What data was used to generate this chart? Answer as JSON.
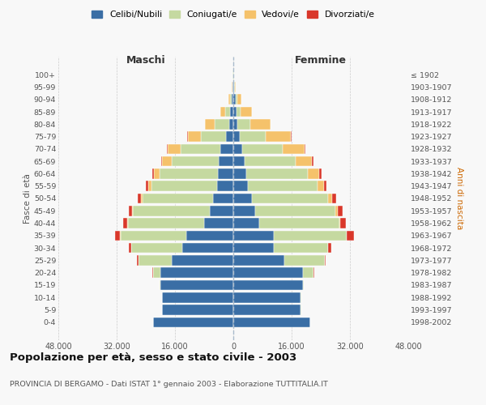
{
  "age_groups": [
    "0-4",
    "5-9",
    "10-14",
    "15-19",
    "20-24",
    "25-29",
    "30-34",
    "35-39",
    "40-44",
    "45-49",
    "50-54",
    "55-59",
    "60-64",
    "65-69",
    "70-74",
    "75-79",
    "80-84",
    "85-89",
    "90-94",
    "95-99",
    "100+"
  ],
  "birth_years": [
    "1998-2002",
    "1993-1997",
    "1988-1992",
    "1983-1987",
    "1978-1982",
    "1973-1977",
    "1968-1972",
    "1963-1967",
    "1958-1962",
    "1953-1957",
    "1948-1952",
    "1943-1947",
    "1938-1942",
    "1933-1937",
    "1928-1932",
    "1923-1927",
    "1918-1922",
    "1913-1917",
    "1908-1912",
    "1903-1907",
    "≤ 1902"
  ],
  "males": {
    "celibi": [
      22000,
      19500,
      19500,
      20000,
      20000,
      17000,
      14000,
      13000,
      8000,
      6500,
      5500,
      4500,
      4200,
      4000,
      3500,
      2000,
      1200,
      800,
      500,
      200,
      100
    ],
    "coniugati": [
      50,
      50,
      50,
      200,
      2000,
      9000,
      14000,
      18000,
      21000,
      21000,
      19500,
      18000,
      16000,
      13000,
      11000,
      7000,
      4000,
      1500,
      500,
      100,
      50
    ],
    "vedovi": [
      10,
      10,
      10,
      20,
      50,
      50,
      50,
      50,
      100,
      200,
      400,
      800,
      1500,
      2500,
      3500,
      3500,
      2500,
      1200,
      300,
      50,
      20
    ],
    "divorziati": [
      10,
      10,
      10,
      30,
      100,
      300,
      600,
      1500,
      1200,
      900,
      800,
      700,
      600,
      300,
      150,
      100,
      50,
      30,
      20,
      10,
      5
    ]
  },
  "females": {
    "nubili": [
      21000,
      18500,
      18500,
      19000,
      19000,
      14000,
      11000,
      11000,
      7000,
      6000,
      5000,
      4000,
      3500,
      3000,
      2500,
      1800,
      1200,
      900,
      600,
      300,
      100
    ],
    "coniugate": [
      60,
      60,
      80,
      300,
      3000,
      11000,
      15000,
      20000,
      22000,
      22000,
      21000,
      19000,
      17000,
      14000,
      11000,
      7000,
      3500,
      1200,
      400,
      80,
      30
    ],
    "vedove": [
      15,
      15,
      20,
      30,
      80,
      80,
      100,
      200,
      400,
      700,
      1200,
      1800,
      3000,
      4500,
      6000,
      7000,
      5500,
      3000,
      1200,
      200,
      50
    ],
    "divorziate": [
      10,
      10,
      15,
      40,
      120,
      350,
      700,
      1800,
      1500,
      1200,
      1000,
      800,
      700,
      400,
      200,
      150,
      80,
      40,
      20,
      10,
      5
    ]
  },
  "colors": {
    "celibi": "#3a6ea5",
    "coniugati": "#c5d9a0",
    "vedovi": "#f5c26b",
    "divorziati": "#d9372a"
  },
  "title": "Popolazione per età, sesso e stato civile - 2003",
  "subtitle": "PROVINCIA DI BERGAMO - Dati ISTAT 1° gennaio 2003 - Elaborazione TUTTITALIA.IT",
  "xlabel_left": "Maschi",
  "xlabel_right": "Femmine",
  "ylabel_left": "Fasce di età",
  "ylabel_right": "Anni di nascita",
  "xlim": 48000,
  "xtick_vals": [
    -48000,
    -32000,
    -16000,
    0,
    16000,
    32000,
    48000
  ],
  "xtick_labels": [
    "48.000",
    "32.000",
    "16.000",
    "0",
    "16.000",
    "32.000",
    "48.000"
  ],
  "legend_labels": [
    "Celibi/Nubili",
    "Coniugati/e",
    "Vedovi/e",
    "Divorziati/e"
  ],
  "background_color": "#f8f8f8"
}
